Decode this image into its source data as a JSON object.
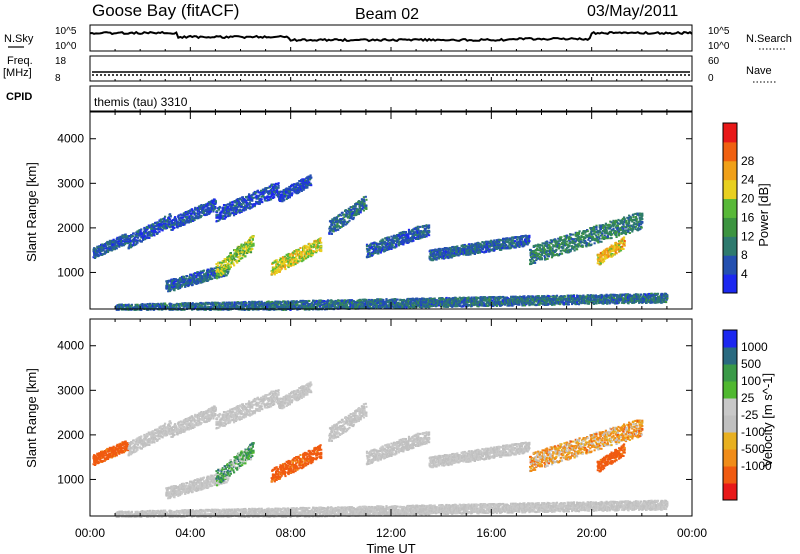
{
  "header": {
    "station": "Goose Bay (fitACF)",
    "beam": "Beam 02",
    "date": "03/May/2011"
  },
  "noise_panel": {
    "left_label": "N.Sky",
    "right_label": "N.Search",
    "left_ticks": [
      "10^5",
      "10^0"
    ],
    "right_ticks": [
      "10^5",
      "10^0"
    ]
  },
  "freq_panel": {
    "left_label_line1": "Freq.",
    "left_label_line2": "[MHz]",
    "left_ticks": [
      "18",
      "8"
    ],
    "right_label": "Nave",
    "right_ticks": [
      "60",
      "0"
    ]
  },
  "cpid": {
    "label": "CPID",
    "value": "themis (tau) 3310"
  },
  "colors": {
    "power_scale": [
      "#1c28f0",
      "#2450b0",
      "#2e7a6e",
      "#3c9440",
      "#58b838",
      "#e8d020",
      "#f0a018",
      "#f06010",
      "#e81818"
    ],
    "velocity_scale": [
      "#e81818",
      "#f05a10",
      "#f08c18",
      "#e8b020",
      "#c0c0c0",
      "#c8c8c8",
      "#50b830",
      "#3a9a48",
      "#2a6a80",
      "#1c28f0"
    ]
  },
  "chart_data": [
    {
      "type": "heatmap",
      "name": "power",
      "ylabel": "Slant Range [km]",
      "xlabel": "",
      "x_ticks": [
        "00:00",
        "04:00",
        "08:00",
        "12:00",
        "16:00",
        "20:00",
        "00:00"
      ],
      "x_range_hours": [
        0,
        24
      ],
      "y_range_km": [
        180,
        4600
      ],
      "y_ticks": [
        1000,
        2000,
        3000,
        4000
      ],
      "colorbar_label": "Power [dB]",
      "colorbar_ticks": [
        "4",
        "8",
        "12",
        "16",
        "20",
        "24",
        "28"
      ],
      "colorbar_range": [
        0,
        30
      ],
      "echo_bands": [
        {
          "t_start": 0.1,
          "t_end": 1.5,
          "range_start": 1450,
          "range_end": 1800,
          "value": 6
        },
        {
          "t_start": 1.5,
          "t_end": 3.2,
          "range_start": 1700,
          "range_end": 2200,
          "value": 5
        },
        {
          "t_start": 3.2,
          "t_end": 5.0,
          "range_start": 2100,
          "range_end": 2550,
          "value": 5
        },
        {
          "t_start": 5.0,
          "t_end": 7.5,
          "range_start": 2300,
          "range_end": 2900,
          "value": 4
        },
        {
          "t_start": 7.5,
          "t_end": 8.8,
          "range_start": 2700,
          "range_end": 3100,
          "value": 4
        },
        {
          "t_start": 9.5,
          "t_end": 11.0,
          "range_start": 2000,
          "range_end": 2600,
          "value": 7
        },
        {
          "t_start": 11.0,
          "t_end": 13.5,
          "range_start": 1500,
          "range_end": 2000,
          "value": 6
        },
        {
          "t_start": 13.5,
          "t_end": 17.5,
          "range_start": 1400,
          "range_end": 1750,
          "value": 6
        },
        {
          "t_start": 17.5,
          "t_end": 22.0,
          "range_start": 1400,
          "range_end": 2200,
          "value": 9
        },
        {
          "t_start": 3.0,
          "t_end": 5.5,
          "range_start": 700,
          "range_end": 1100,
          "value": 6
        },
        {
          "t_start": 5.0,
          "t_end": 6.5,
          "range_start": 1050,
          "range_end": 1700,
          "value": 16
        },
        {
          "t_start": 7.2,
          "t_end": 9.2,
          "range_start": 1100,
          "range_end": 1650,
          "value": 18
        },
        {
          "t_start": 20.2,
          "t_end": 21.3,
          "range_start": 1300,
          "range_end": 1700,
          "value": 20
        },
        {
          "t_start": 1.0,
          "t_end": 23.0,
          "range_start": 200,
          "range_end": 450,
          "value": 7
        }
      ]
    },
    {
      "type": "heatmap",
      "name": "velocity",
      "ylabel": "Slant Range [km]",
      "xlabel": "Time UT",
      "x_ticks": [
        "00:00",
        "04:00",
        "08:00",
        "12:00",
        "16:00",
        "20:00",
        "00:00"
      ],
      "x_range_hours": [
        0,
        24
      ],
      "y_range_km": [
        180,
        4600
      ],
      "y_ticks": [
        1000,
        2000,
        3000,
        4000
      ],
      "colorbar_label": "Velocity [m s^-1]",
      "colorbar_ticks": [
        "1000",
        "500",
        "100",
        "25",
        "-25",
        "-100",
        "-500",
        "-1000"
      ],
      "echo_bands": [
        {
          "t_start": 0.1,
          "t_end": 1.5,
          "range_start": 1450,
          "range_end": 1800,
          "value": -150
        },
        {
          "t_start": 1.5,
          "t_end": 3.2,
          "range_start": 1700,
          "range_end": 2200,
          "value": 0
        },
        {
          "t_start": 3.2,
          "t_end": 5.0,
          "range_start": 2100,
          "range_end": 2550,
          "value": 0
        },
        {
          "t_start": 5.0,
          "t_end": 7.5,
          "range_start": 2300,
          "range_end": 2900,
          "value": 0
        },
        {
          "t_start": 7.5,
          "t_end": 8.8,
          "range_start": 2700,
          "range_end": 3100,
          "value": 0
        },
        {
          "t_start": 9.5,
          "t_end": 11.0,
          "range_start": 2000,
          "range_end": 2600,
          "value": 0
        },
        {
          "t_start": 11.0,
          "t_end": 13.5,
          "range_start": 1500,
          "range_end": 2000,
          "value": 0
        },
        {
          "t_start": 13.5,
          "t_end": 17.5,
          "range_start": 1400,
          "range_end": 1750,
          "value": 0
        },
        {
          "t_start": 17.5,
          "t_end": 22.0,
          "range_start": 1400,
          "range_end": 2200,
          "value": -50
        },
        {
          "t_start": 3.0,
          "t_end": 5.5,
          "range_start": 700,
          "range_end": 1100,
          "value": 0
        },
        {
          "t_start": 5.0,
          "t_end": 6.5,
          "range_start": 1050,
          "range_end": 1700,
          "value": 60
        },
        {
          "t_start": 7.2,
          "t_end": 9.2,
          "range_start": 1100,
          "range_end": 1650,
          "value": -150
        },
        {
          "t_start": 20.2,
          "t_end": 21.3,
          "range_start": 1300,
          "range_end": 1700,
          "value": -150
        },
        {
          "t_start": 1.0,
          "t_end": 23.0,
          "range_start": 200,
          "range_end": 450,
          "value": 0
        }
      ]
    }
  ]
}
